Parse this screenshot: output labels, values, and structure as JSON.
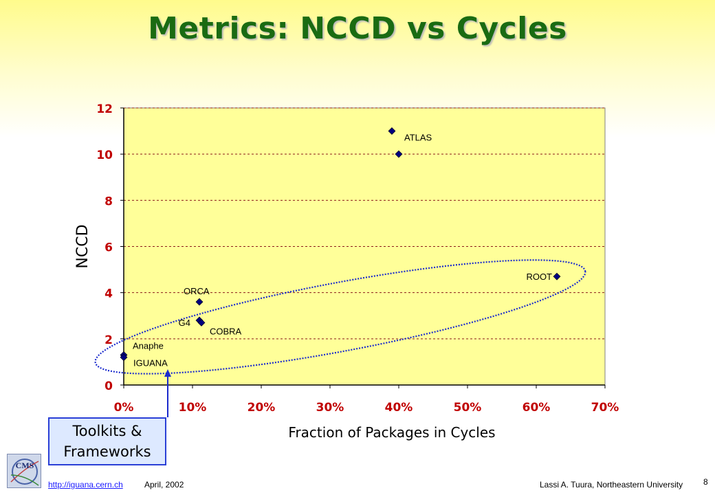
{
  "slide": {
    "title": "Metrics: NCCD vs Cycles",
    "callout": {
      "line1": "Toolkits &",
      "line2": "Frameworks"
    },
    "footer": {
      "link": "http://iguana.cern.ch",
      "date": "April, 2002",
      "author": "Lassi A. Tuura, Northeastern University",
      "page": "8"
    },
    "logo_text": "CMS"
  },
  "chart_data": {
    "type": "scatter",
    "xlabel": "Fraction of Packages in Cycles",
    "ylabel": "NCCD",
    "xlim": [
      0,
      0.7
    ],
    "ylim": [
      0,
      12
    ],
    "xticks": [
      0,
      0.1,
      0.2,
      0.3,
      0.4,
      0.5,
      0.6,
      0.7
    ],
    "xtick_labels": [
      "0%",
      "10%",
      "20%",
      "30%",
      "40%",
      "50%",
      "60%",
      "70%"
    ],
    "yticks": [
      0,
      2,
      4,
      6,
      8,
      10,
      12
    ],
    "ytick_labels": [
      "0",
      "2",
      "4",
      "6",
      "8",
      "10",
      "12"
    ],
    "grid": "horizontal dashed",
    "plot_background": "#ffff99",
    "marker_color": "#000080",
    "points": [
      {
        "label": "ATLAS",
        "x": 0.39,
        "y": 11.0
      },
      {
        "label": "",
        "x": 0.4,
        "y": 10.0
      },
      {
        "label": "ROOT",
        "x": 0.63,
        "y": 4.7
      },
      {
        "label": "ORCA",
        "x": 0.11,
        "y": 3.6
      },
      {
        "label": "G4",
        "x": 0.11,
        "y": 2.8
      },
      {
        "label": "COBRA",
        "x": 0.113,
        "y": 2.7
      },
      {
        "label": "Anaphe",
        "x": 0.0,
        "y": 1.3
      },
      {
        "label": "IGUANA",
        "x": 0.0,
        "y": 1.2
      }
    ]
  }
}
